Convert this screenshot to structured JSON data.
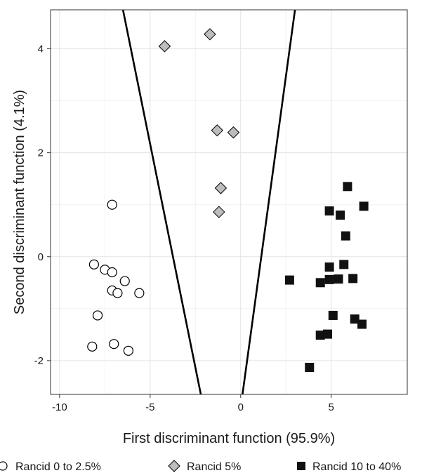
{
  "chart_data": {
    "type": "scatter",
    "title": "",
    "xlabel": "First discriminant function (95.9%)",
    "ylabel": "Second discriminant function (4.1%)",
    "xlim": [
      -10.5,
      9.2
    ],
    "ylim": [
      -2.65,
      4.75
    ],
    "xticks": [
      -10,
      -5,
      0,
      5
    ],
    "yticks": [
      -2,
      0,
      2,
      4
    ],
    "grid": true,
    "legend_position": "bottom",
    "series": [
      {
        "name": "Rancid 0 to 2.5%",
        "marker": "circle",
        "fill": "#ffffff",
        "stroke": "#000000",
        "points": [
          [
            -7.1,
            1.0
          ],
          [
            -8.1,
            -0.15
          ],
          [
            -7.5,
            -0.25
          ],
          [
            -7.1,
            -0.3
          ],
          [
            -6.4,
            -0.47
          ],
          [
            -7.1,
            -0.65
          ],
          [
            -6.8,
            -0.7
          ],
          [
            -5.6,
            -0.7
          ],
          [
            -7.9,
            -1.13
          ],
          [
            -8.2,
            -1.73
          ],
          [
            -7.0,
            -1.68
          ],
          [
            -6.2,
            -1.81
          ]
        ]
      },
      {
        "name": "Rancid 5%",
        "marker": "diamond",
        "fill": "#bdbdbd",
        "stroke": "#000000",
        "points": [
          [
            -4.2,
            4.05
          ],
          [
            -1.7,
            4.28
          ],
          [
            -1.3,
            2.43
          ],
          [
            -0.4,
            2.39
          ],
          [
            -1.1,
            1.32
          ],
          [
            -1.2,
            0.86
          ]
        ]
      },
      {
        "name": "Rancid 10 to 40%",
        "marker": "square",
        "fill": "#111111",
        "stroke": "#000000",
        "points": [
          [
            5.9,
            1.35
          ],
          [
            6.8,
            0.97
          ],
          [
            4.9,
            0.88
          ],
          [
            5.5,
            0.8
          ],
          [
            5.8,
            0.4
          ],
          [
            5.7,
            -0.15
          ],
          [
            4.9,
            -0.2
          ],
          [
            2.7,
            -0.45
          ],
          [
            4.4,
            -0.5
          ],
          [
            4.9,
            -0.44
          ],
          [
            5.4,
            -0.43
          ],
          [
            6.2,
            -0.42
          ],
          [
            5.1,
            -1.13
          ],
          [
            6.3,
            -1.2
          ],
          [
            6.7,
            -1.3
          ],
          [
            4.4,
            -1.51
          ],
          [
            4.8,
            -1.49
          ],
          [
            3.8,
            -2.13
          ]
        ]
      }
    ],
    "boundaries": [
      {
        "from": [
          -6.5,
          4.75
        ],
        "to": [
          -2.2,
          -2.65
        ]
      },
      {
        "from": [
          3.0,
          4.75
        ],
        "to": [
          0.1,
          -2.65
        ]
      }
    ]
  }
}
